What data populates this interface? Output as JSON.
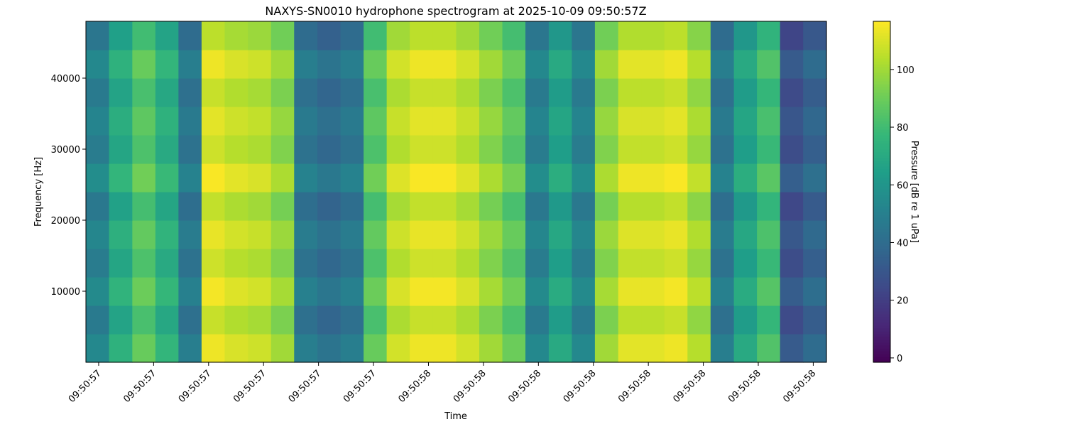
{
  "chart_data": {
    "type": "heatmap",
    "title": "NAXYS-SN0010 hydrophone spectrogram at 2025-10-09 09:50:57Z",
    "x_label": "Time",
    "y_label": "Frequency [Hz]",
    "colorbar_label": "Pressure [dB re 1 uPa]",
    "colormap": "viridis",
    "xlim": [
      57.221,
      58.905
    ],
    "xticks": [
      {
        "value": 57.25,
        "label": "09:50:57"
      },
      {
        "value": 57.375,
        "label": "09:50:57"
      },
      {
        "value": 57.5,
        "label": "09:50:57"
      },
      {
        "value": 57.625,
        "label": "09:50:57"
      },
      {
        "value": 57.75,
        "label": "09:50:57"
      },
      {
        "value": 57.875,
        "label": "09:50:57"
      },
      {
        "value": 58.0,
        "label": "09:50:58"
      },
      {
        "value": 58.125,
        "label": "09:50:58"
      },
      {
        "value": 58.25,
        "label": "09:50:58"
      },
      {
        "value": 58.375,
        "label": "09:50:58"
      },
      {
        "value": 58.5,
        "label": "09:50:58"
      },
      {
        "value": 58.625,
        "label": "09:50:58"
      },
      {
        "value": 58.75,
        "label": "09:50:58"
      },
      {
        "value": 58.875,
        "label": "09:50:58"
      }
    ],
    "ylim": [
      0,
      48000
    ],
    "yticks": [
      10000,
      20000,
      30000,
      40000
    ],
    "clim": [
      -1.5,
      116.7
    ],
    "cticks": [
      0,
      20,
      40,
      60,
      80,
      100
    ],
    "x": [
      57.247,
      57.3,
      57.353,
      57.405,
      57.458,
      57.51,
      57.563,
      57.616,
      57.668,
      57.721,
      57.774,
      57.826,
      57.879,
      57.931,
      57.984,
      58.037,
      58.089,
      58.142,
      58.194,
      58.247,
      58.3,
      58.352,
      58.405,
      58.458,
      58.51,
      58.563,
      58.615,
      58.668,
      58.721,
      58.773,
      58.826,
      58.878
    ],
    "y": [
      2000,
      6000,
      10000,
      14000,
      18000,
      22000,
      26000,
      30000,
      34000,
      38000,
      42000,
      46000
    ],
    "z": [
      [
        54,
        74,
        89,
        76,
        49,
        114,
        110,
        108,
        100,
        49,
        44,
        49,
        89,
        109,
        114,
        114,
        109,
        100,
        90,
        54,
        70,
        54,
        100,
        112,
        112,
        114,
        104,
        49,
        70,
        84,
        32,
        40
      ],
      [
        47,
        67,
        82,
        69,
        42,
        107,
        103,
        101,
        93,
        42,
        37,
        42,
        82,
        102,
        107,
        107,
        102,
        93,
        83,
        47,
        63,
        47,
        93,
        105,
        105,
        107,
        97,
        42,
        63,
        77,
        25,
        33
      ],
      [
        55,
        75,
        90,
        77,
        50,
        115,
        111,
        109,
        101,
        50,
        45,
        50,
        90,
        110,
        115,
        115,
        110,
        101,
        91,
        55,
        71,
        55,
        101,
        113,
        113,
        115,
        105,
        50,
        71,
        85,
        33,
        41
      ],
      [
        48,
        68,
        83,
        70,
        43,
        108,
        104,
        102,
        94,
        43,
        38,
        43,
        83,
        103,
        108,
        108,
        103,
        94,
        84,
        48,
        64,
        48,
        94,
        106,
        106,
        108,
        98,
        43,
        64,
        78,
        26,
        34
      ],
      [
        53,
        73,
        88,
        75,
        48,
        113,
        109,
        107,
        99,
        48,
        43,
        48,
        88,
        108,
        113,
        113,
        108,
        99,
        89,
        53,
        69,
        53,
        99,
        111,
        111,
        113,
        103,
        48,
        69,
        83,
        31,
        39
      ],
      [
        46,
        66,
        81,
        68,
        41,
        106,
        102,
        100,
        92,
        41,
        36,
        41,
        81,
        101,
        106,
        106,
        101,
        92,
        82,
        46,
        62,
        46,
        92,
        104,
        104,
        106,
        96,
        41,
        62,
        76,
        24,
        32
      ],
      [
        56,
        76,
        91,
        78,
        51,
        116,
        112,
        110,
        102,
        51,
        46,
        51,
        91,
        111,
        116,
        116,
        111,
        102,
        92,
        56,
        72,
        56,
        102,
        114,
        114,
        116,
        106,
        51,
        72,
        86,
        34,
        42
      ],
      [
        48,
        68,
        83,
        70,
        43,
        108,
        104,
        102,
        94,
        43,
        38,
        43,
        83,
        103,
        108,
        108,
        103,
        94,
        84,
        48,
        64,
        48,
        94,
        106,
        106,
        108,
        98,
        43,
        64,
        78,
        26,
        34
      ],
      [
        52,
        72,
        87,
        74,
        47,
        112,
        108,
        106,
        98,
        47,
        42,
        47,
        87,
        107,
        112,
        112,
        107,
        98,
        88,
        52,
        68,
        52,
        98,
        110,
        110,
        112,
        102,
        47,
        68,
        82,
        30,
        38
      ],
      [
        47,
        67,
        82,
        69,
        42,
        107,
        103,
        101,
        93,
        42,
        37,
        42,
        82,
        102,
        107,
        107,
        102,
        93,
        83,
        47,
        63,
        47,
        93,
        105,
        105,
        107,
        97,
        42,
        63,
        77,
        25,
        33
      ],
      [
        54,
        74,
        89,
        76,
        49,
        114,
        110,
        108,
        100,
        49,
        44,
        49,
        89,
        109,
        114,
        114,
        109,
        100,
        90,
        54,
        70,
        54,
        100,
        112,
        112,
        114,
        104,
        49,
        70,
        84,
        32,
        40
      ],
      [
        45,
        65,
        80,
        67,
        40,
        105,
        101,
        99,
        91,
        40,
        35,
        40,
        80,
        100,
        105,
        105,
        100,
        91,
        81,
        45,
        61,
        45,
        91,
        103,
        103,
        105,
        95,
        40,
        61,
        75,
        23,
        31
      ]
    ]
  }
}
